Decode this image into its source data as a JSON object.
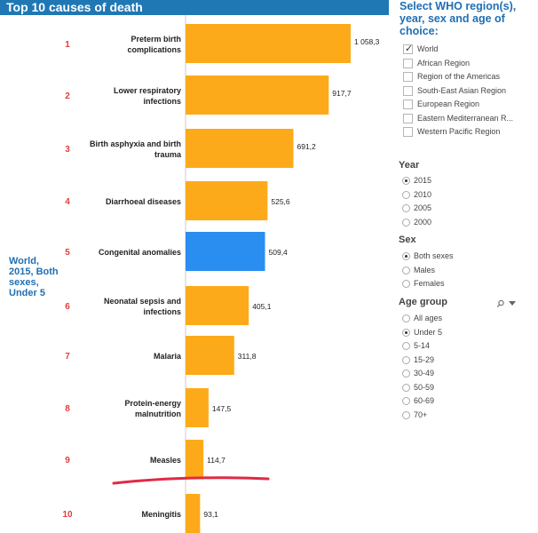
{
  "chart_data": {
    "type": "bar",
    "orientation": "horizontal",
    "title": "Top 10 causes of death",
    "side_label": [
      "World,",
      "2015, Both",
      "sexes,",
      "Under 5"
    ],
    "colors": {
      "default": "#fdaa1a",
      "highlight": "#2a8ef0",
      "rank": "#e23c3c",
      "side": "#1e6fb5",
      "underline": "#e02a43"
    },
    "highlight_index": 4,
    "categories": [
      {
        "rank": "1",
        "label": [
          "Preterm birth",
          "complications"
        ],
        "value": 1058.3,
        "value_label": "1 058,3"
      },
      {
        "rank": "2",
        "label": [
          "Lower respiratory",
          "infections"
        ],
        "value": 917.7,
        "value_label": "917,7"
      },
      {
        "rank": "3",
        "label": [
          "Birth asphyxia and birth",
          "trauma"
        ],
        "value": 691.2,
        "value_label": "691,2"
      },
      {
        "rank": "4",
        "label": [
          "Diarrhoeal diseases"
        ],
        "value": 525.6,
        "value_label": "525,6"
      },
      {
        "rank": "5",
        "label": [
          "Congenital anomalies"
        ],
        "value": 509.4,
        "value_label": "509,4"
      },
      {
        "rank": "6",
        "label": [
          "Neonatal sepsis and",
          "infections"
        ],
        "value": 405.1,
        "value_label": "405,1"
      },
      {
        "rank": "7",
        "label": [
          "Malaria"
        ],
        "value": 311.8,
        "value_label": "311,8"
      },
      {
        "rank": "8",
        "label": [
          "Protein-energy",
          "malnutrition"
        ],
        "value": 147.5,
        "value_label": "147,5"
      },
      {
        "rank": "9",
        "label": [
          "Measles"
        ],
        "value": 114.7,
        "value_label": "114,7"
      },
      {
        "rank": "10",
        "label": [
          "Meningitis"
        ],
        "value": 93.1,
        "value_label": "93,1"
      }
    ],
    "xlim": [
      0,
      1058.3
    ]
  },
  "filters": {
    "region_header": "Select WHO region(s), year, sex and age of choice:",
    "regions": [
      {
        "label": "World",
        "checked": true
      },
      {
        "label": "African Region",
        "checked": false
      },
      {
        "label": "Region of the Americas",
        "checked": false
      },
      {
        "label": "South-East Asian Region",
        "checked": false
      },
      {
        "label": "European Region",
        "checked": false
      },
      {
        "label": "Eastern Mediterranean R...",
        "checked": false
      },
      {
        "label": "Western Pacific Region",
        "checked": false
      }
    ],
    "year_header": "Year",
    "years": [
      {
        "label": "2015",
        "selected": true
      },
      {
        "label": "2010",
        "selected": false
      },
      {
        "label": "2005",
        "selected": false
      },
      {
        "label": "2000",
        "selected": false
      }
    ],
    "sex_header": "Sex",
    "sexes": [
      {
        "label": "Both sexes",
        "selected": true
      },
      {
        "label": "Males",
        "selected": false
      },
      {
        "label": "Females",
        "selected": false
      }
    ],
    "age_header": "Age group",
    "ages": [
      {
        "label": "All ages",
        "selected": false
      },
      {
        "label": "Under 5",
        "selected": true
      },
      {
        "label": "5-14",
        "selected": false
      },
      {
        "label": "15-29",
        "selected": false
      },
      {
        "label": "30-49",
        "selected": false
      },
      {
        "label": "50-59",
        "selected": false
      },
      {
        "label": "60-69",
        "selected": false
      },
      {
        "label": "70+",
        "selected": false
      }
    ],
    "search_icon": "search-icon",
    "dropdown_icon": "dropdown-icon"
  }
}
